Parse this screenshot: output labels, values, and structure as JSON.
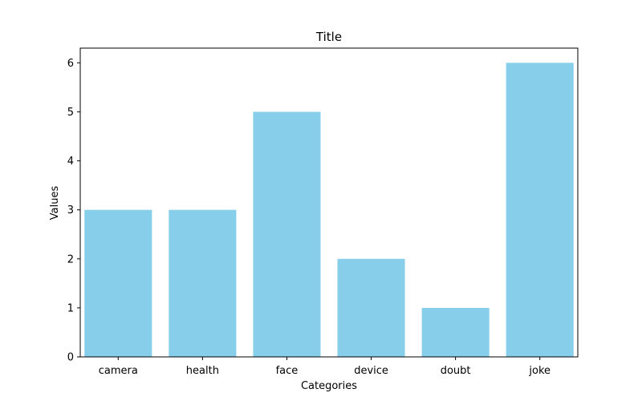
{
  "chart_data": {
    "type": "bar",
    "title": "Title",
    "xlabel": "Categories",
    "ylabel": "Values",
    "categories": [
      "camera",
      "health",
      "face",
      "device",
      "doubt",
      "joke"
    ],
    "values": [
      3,
      3,
      5,
      2,
      1,
      6
    ],
    "ylim": [
      0,
      6.3
    ],
    "yticks": [
      0,
      1,
      2,
      3,
      4,
      5,
      6
    ],
    "bar_color": "#87ceeb",
    "grid": false,
    "legend": "none"
  }
}
